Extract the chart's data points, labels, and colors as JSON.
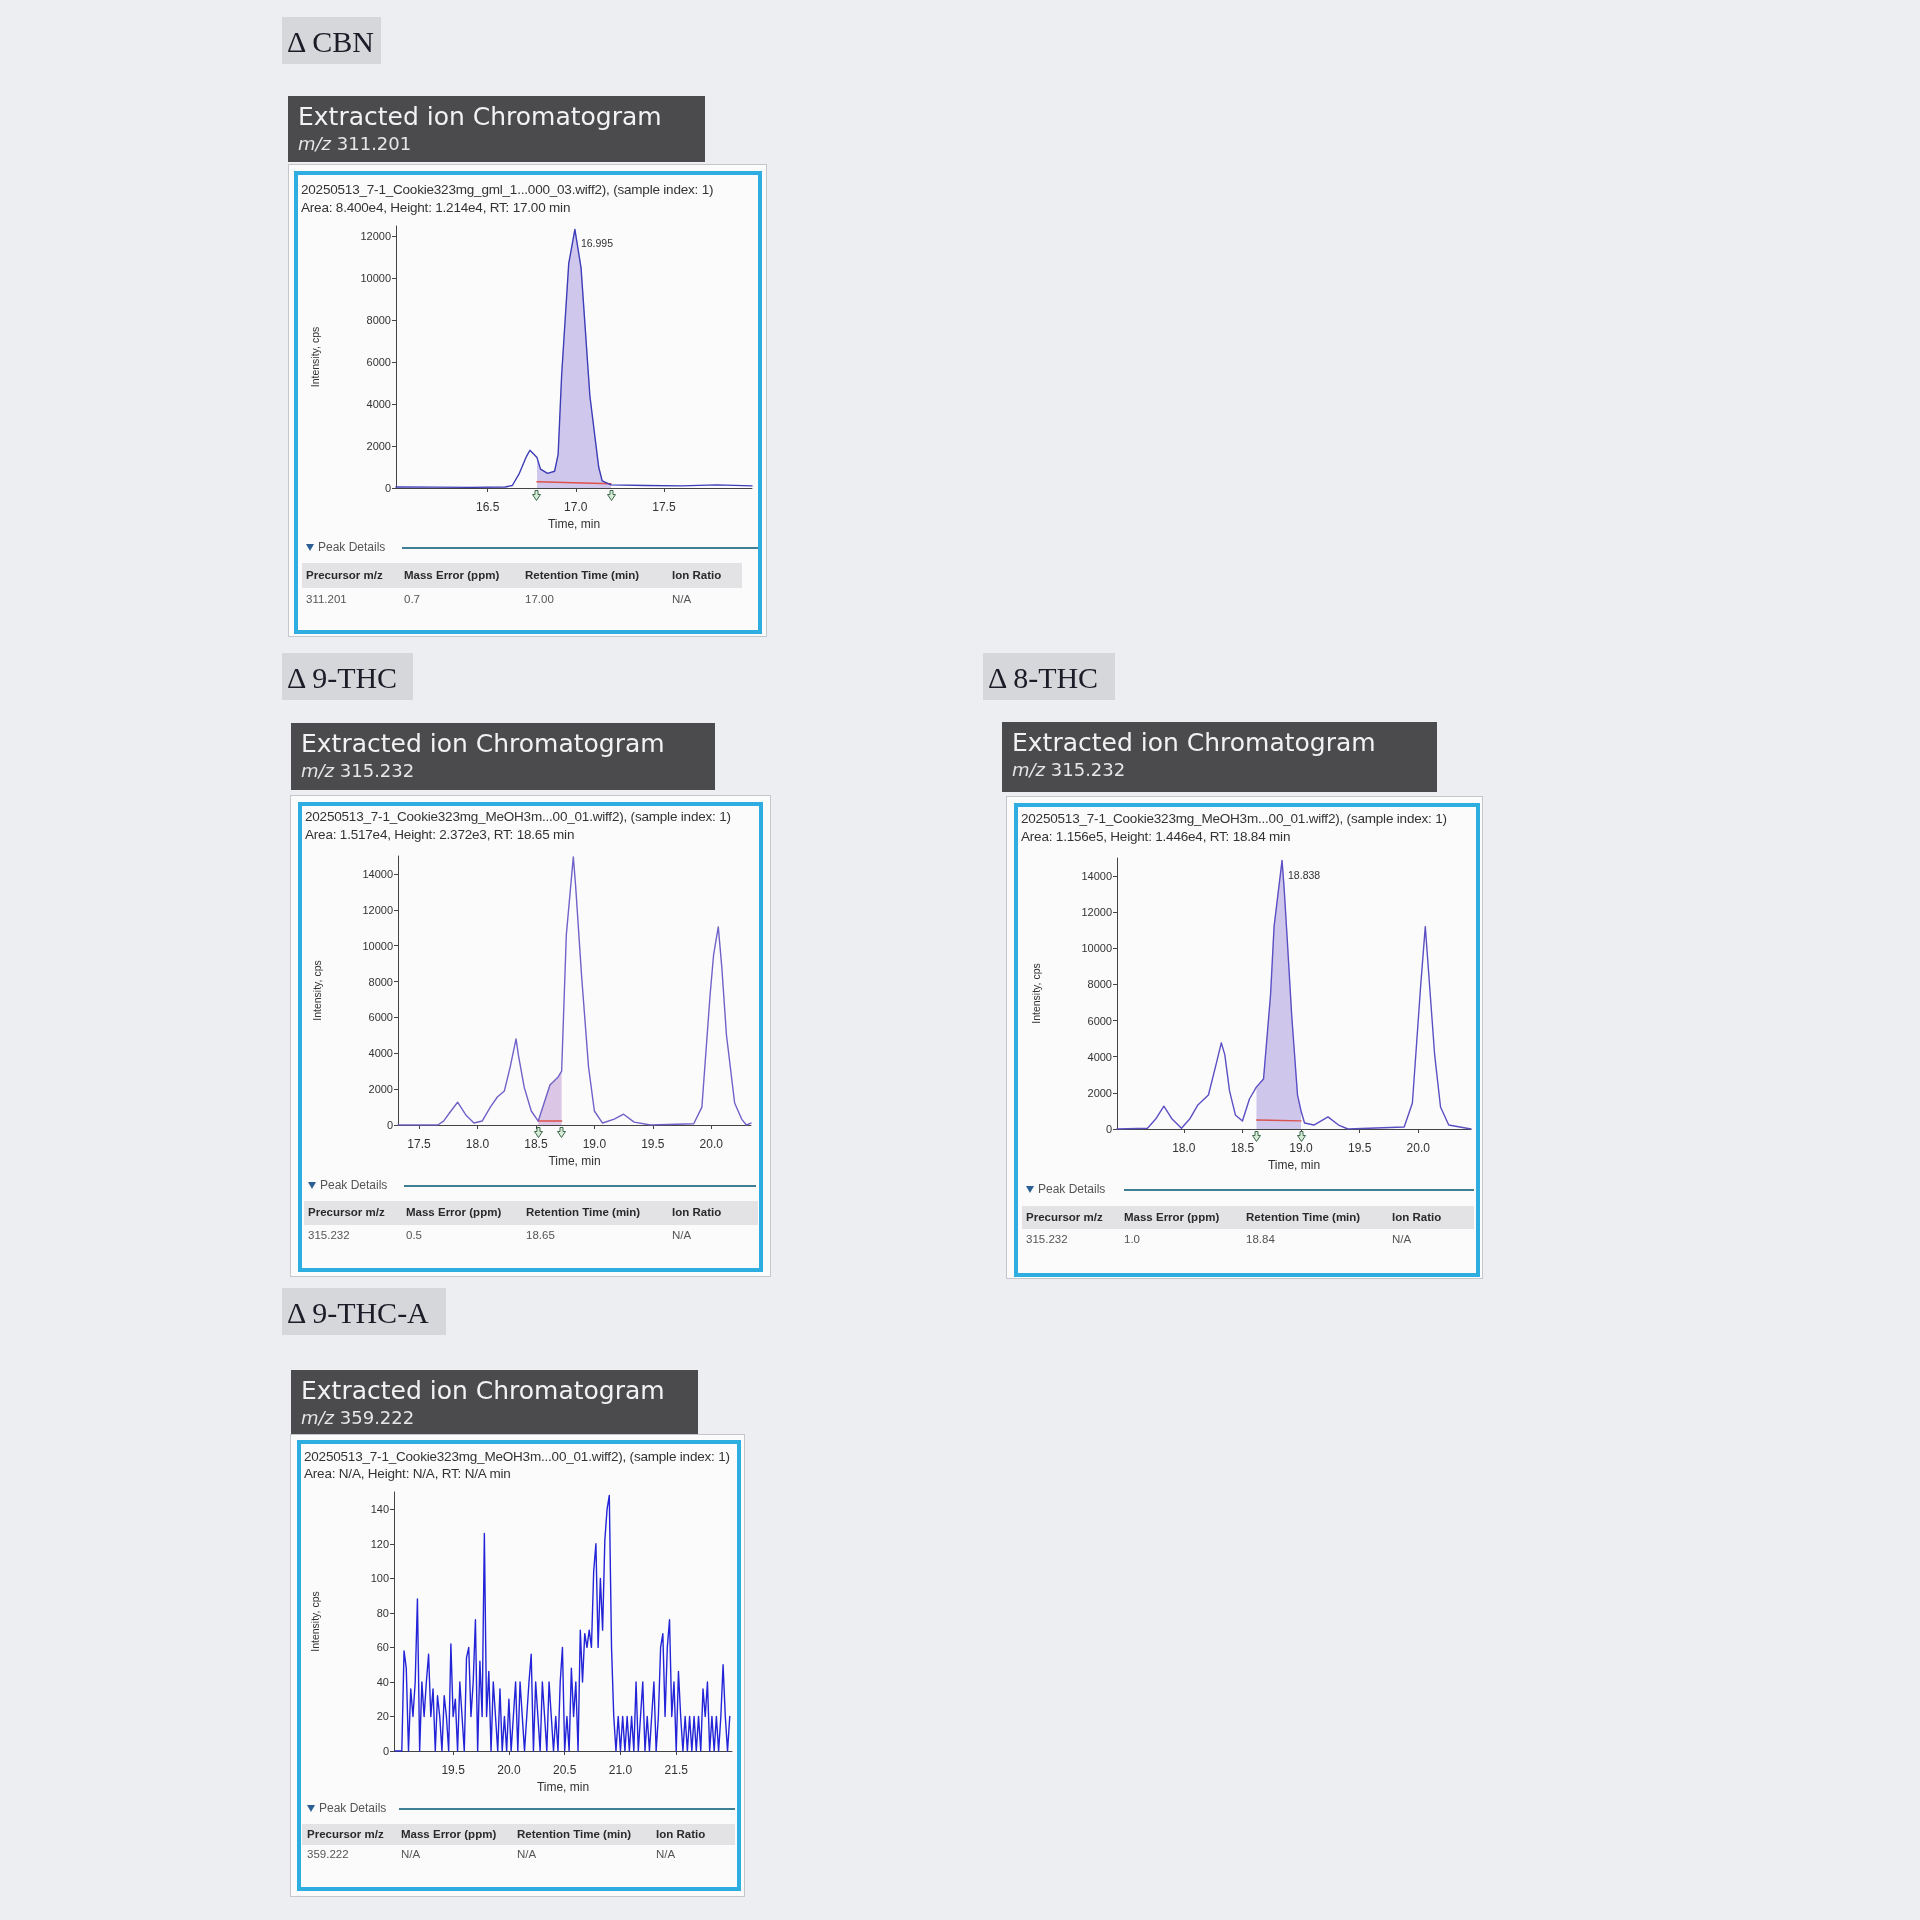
{
  "chart_data": [
    {
      "type": "line",
      "title": "Δ CBN",
      "subtitle": "Extracted ion Chromatogram",
      "xlabel": "Time, min",
      "ylabel": "Intensity, cps",
      "xlim": [
        15.98,
        18.0
      ],
      "xticks": [
        16.5,
        {
          "value": 17,
          "label": "17.0"
        },
        17.5
      ],
      "ylim": [
        0,
        12500
      ],
      "yticks": [
        0,
        2000,
        4000,
        6000,
        8000,
        10000,
        12000
      ],
      "grid": false,
      "marker": "none",
      "series": [
        {
          "type": "area",
          "color": "#cfc8ec",
          "x": [
            16.78,
            16.8,
            16.84,
            16.88,
            16.9,
            16.92,
            16.96,
            16.995,
            17.03,
            17.08,
            17.13,
            17.15,
            17.2
          ],
          "values": [
            1450,
            900,
            700,
            800,
            1600,
            5400,
            10700,
            12340,
            10500,
            4400,
            1000,
            340,
            150
          ]
        },
        {
          "type": "line",
          "color": "#e0504a",
          "x": [
            16.78,
            17.2
          ],
          "values": [
            300,
            200
          ]
        },
        {
          "type": "line",
          "color": "#3d3db8",
          "x": [
            15.98,
            16.2,
            16.4,
            16.6,
            16.64,
            16.68,
            16.72,
            16.74,
            16.78,
            16.8,
            16.84,
            16.88,
            16.9,
            16.92,
            16.96,
            16.995,
            17.03,
            17.08,
            17.13,
            17.15,
            17.2,
            17.4,
            17.6,
            17.8,
            18.0
          ],
          "values": [
            50,
            40,
            30,
            50,
            120,
            700,
            1500,
            1800,
            1450,
            900,
            700,
            800,
            1600,
            5400,
            10700,
            12340,
            10500,
            4400,
            1000,
            340,
            150,
            120,
            100,
            150,
            100
          ]
        }
      ],
      "annotations": [
        "m/z 311.201",
        "20250513_7-1_Cookie323mg_gml_1...000_03.wiff2), (sample index: 1)",
        "Area: 8.400e4, Height: 1.214e4, RT: 17.00 min",
        "Peak Details",
        "Precursor m/z",
        "Mass Error (ppm)",
        "Retention Time (min)",
        "Ion Ratio",
        "311.201",
        "0.7",
        "17.00",
        "N/A",
        {
          "text": "16.995",
          "x": 16.995,
          "y": 12340
        }
      ]
    },
    {
      "type": "line",
      "title": "Δ 9-THC",
      "subtitle": "Extracted ion Chromatogram",
      "xlabel": "Time, min",
      "ylabel": "Intensity, cps",
      "xlim": [
        17.32,
        20.34
      ],
      "xticks": [
        17.5,
        {
          "value": 18,
          "label": "18.0"
        },
        18.5,
        {
          "value": 19,
          "label": "19.0"
        },
        19.5,
        {
          "value": 20,
          "label": "20.0"
        }
      ],
      "ylim": [
        0,
        15000
      ],
      "yticks": [
        0,
        2000,
        4000,
        6000,
        8000,
        10000,
        12000,
        14000
      ],
      "grid": false,
      "marker": "none",
      "series": [
        {
          "type": "area",
          "color": "#dcc6e6",
          "x": [
            18.52,
            18.57,
            18.62,
            18.69,
            18.72
          ],
          "values": [
            220,
            1230,
            2230,
            2680,
            3000
          ]
        },
        {
          "type": "line",
          "color": "#e0504a",
          "x": [
            18.52,
            18.72
          ],
          "values": [
            220,
            220
          ]
        },
        {
          "type": "line",
          "color": "#6f62c8",
          "x": [
            17.32,
            17.66,
            17.71,
            17.76,
            17.83,
            17.9,
            17.97,
            18.04,
            18.11,
            18.17,
            18.23,
            18.28,
            18.33,
            18.35,
            18.4,
            18.46,
            18.52,
            18.57,
            18.62,
            18.69,
            18.72,
            18.76,
            18.82,
            18.84,
            18.89,
            18.95,
            19.0,
            19.07,
            19.17,
            19.25,
            19.34,
            19.48,
            19.85,
            19.92,
            19.99,
            20.02,
            20.06,
            20.09,
            20.13,
            20.2,
            20.26,
            20.3,
            20.34
          ],
          "values": [
            0,
            0,
            220,
            670,
            1270,
            560,
            110,
            220,
            1000,
            1560,
            1900,
            3240,
            4800,
            3900,
            2100,
            780,
            220,
            1230,
            2230,
            2680,
            3000,
            10600,
            14950,
            13300,
            8370,
            3240,
            780,
            110,
            330,
            600,
            160,
            0,
            70,
            1000,
            7250,
            9490,
            11050,
            8820,
            5020,
            1230,
            330,
            0,
            110
          ]
        }
      ],
      "annotations": [
        "m/z 315.232",
        "20250513_7-1_Cookie323mg_MeOH3m...00_01.wiff2), (sample index: 1)",
        "Area: 1.517e4, Height: 2.372e3, RT: 18.65 min",
        "Peak Details",
        "Precursor m/z",
        "Mass Error (ppm)",
        "Retention Time (min)",
        "Ion Ratio",
        "315.232",
        "0.5",
        "18.65",
        "N/A"
      ]
    },
    {
      "type": "line",
      "title": "Δ 8-THC",
      "subtitle": "Extracted ion Chromatogram",
      "xlabel": "Time, min",
      "ylabel": "Intensity, cps",
      "xlim": [
        17.43,
        20.45
      ],
      "xticks": [
        {
          "value": 18,
          "label": "18.0"
        },
        18.5,
        {
          "value": 19,
          "label": "19.0"
        },
        19.5,
        {
          "value": 20,
          "label": "20.0"
        }
      ],
      "ylim": [
        0,
        15000
      ],
      "yticks": [
        0,
        2000,
        4000,
        6000,
        8000,
        10000,
        12000,
        14000
      ],
      "grid": false,
      "marker": "none",
      "series": [
        {
          "type": "area",
          "color": "#cfc6ec",
          "x": [
            18.62,
            18.68,
            18.74,
            18.77,
            18.838,
            18.855,
            18.88,
            18.92,
            18.97,
            19.0
          ],
          "values": [
            2330,
            2770,
            7430,
            11200,
            14860,
            13410,
            10750,
            6320,
            1880,
            1000
          ]
        },
        {
          "type": "line",
          "color": "#d9534f",
          "x": [
            18.62,
            19.0
          ],
          "values": [
            500,
            450
          ]
        },
        {
          "type": "line",
          "color": "#5b4fc4",
          "x": [
            17.43,
            17.69,
            17.76,
            17.83,
            17.9,
            17.98,
            18.05,
            18.12,
            18.21,
            18.27,
            18.32,
            18.35,
            18.39,
            18.44,
            18.5,
            18.56,
            18.62,
            18.68,
            18.74,
            18.77,
            18.838,
            18.855,
            18.88,
            18.92,
            18.97,
            19.0,
            19.03,
            19.11,
            19.23,
            19.32,
            19.4,
            19.88,
            19.95,
            20.02,
            20.06,
            20.09,
            20.14,
            20.19,
            20.26,
            20.45
          ],
          "values": [
            0,
            40,
            550,
            1260,
            550,
            40,
            550,
            1330,
            1880,
            3440,
            4770,
            4100,
            2110,
            780,
            440,
            1660,
            2330,
            2770,
            7430,
            11200,
            14860,
            13410,
            10750,
            6320,
            1880,
            1000,
            330,
            220,
            670,
            220,
            0,
            110,
            1440,
            7870,
            11200,
            8540,
            4100,
            1220,
            220,
            0
          ]
        }
      ],
      "annotations": [
        "m/z 315.232",
        "20250513_7-1_Cookie323mg_MeOH3m...00_01.wiff2), (sample index: 1)",
        "Area: 1.156e5, Height: 1.446e4, RT: 18.84 min",
        "Peak Details",
        "Precursor m/z",
        "Mass Error (ppm)",
        "Retention Time (min)",
        "Ion Ratio",
        "315.232",
        "1.0",
        "18.84",
        "N/A",
        {
          "text": "18.838",
          "x": 18.838,
          "y": 14860
        }
      ]
    },
    {
      "type": "line",
      "title": "Δ 9-THC-A",
      "subtitle": "Extracted ion Chromatogram",
      "xlabel": "Time, min",
      "ylabel": "Intensity, cps",
      "xlim": [
        18.97,
        22.0
      ],
      "xticks": [
        19.5,
        {
          "value": 20,
          "label": "20.0"
        },
        20.5,
        {
          "value": 21,
          "label": "21.0"
        },
        21.5
      ],
      "ylim": [
        0,
        150
      ],
      "yticks": [
        0,
        20,
        40,
        60,
        80,
        100,
        120,
        140
      ],
      "grid": false,
      "marker": "none",
      "series": [
        {
          "type": "line",
          "color": "#2323d8",
          "x": [
            18.98,
            19.04,
            19.06,
            19.08,
            19.1,
            19.12,
            19.14,
            19.16,
            19.18,
            19.2,
            19.22,
            19.24,
            19.26,
            19.28,
            19.3,
            19.32,
            19.34,
            19.36,
            19.38,
            19.4,
            19.42,
            19.44,
            19.46,
            19.48,
            19.5,
            19.52,
            19.54,
            19.56,
            19.58,
            19.6,
            19.62,
            19.64,
            19.66,
            19.68,
            19.7,
            19.72,
            19.74,
            19.76,
            19.78,
            19.8,
            19.82,
            19.84,
            19.86,
            19.88,
            19.9,
            19.92,
            19.94,
            19.96,
            19.98,
            20.0,
            20.02,
            20.04,
            20.06,
            20.08,
            20.1,
            20.12,
            20.14,
            20.16,
            20.18,
            20.2,
            20.22,
            20.24,
            20.26,
            20.28,
            20.3,
            20.32,
            20.34,
            20.36,
            20.38,
            20.4,
            20.42,
            20.44,
            20.46,
            20.48,
            20.5,
            20.52,
            20.54,
            20.56,
            20.58,
            20.6,
            20.62,
            20.64,
            20.66,
            20.68,
            20.7,
            20.72,
            20.74,
            20.76,
            20.78,
            20.8,
            20.82,
            20.84,
            20.86,
            20.88,
            20.9,
            20.92,
            20.94,
            20.96,
            20.98,
            21.0,
            21.02,
            21.04,
            21.06,
            21.08,
            21.1,
            21.12,
            21.14,
            21.16,
            21.18,
            21.2,
            21.22,
            21.24,
            21.26,
            21.28,
            21.3,
            21.32,
            21.34,
            21.36,
            21.38,
            21.4,
            21.42,
            21.44,
            21.46,
            21.48,
            21.5,
            21.52,
            21.54,
            21.56,
            21.58,
            21.6,
            21.62,
            21.64,
            21.66,
            21.68,
            21.7,
            21.72,
            21.74,
            21.76,
            21.78,
            21.8,
            21.82,
            21.84,
            21.86,
            21.88,
            21.9,
            21.92,
            21.94,
            21.96,
            21.98
          ],
          "values": [
            0,
            0,
            58,
            48,
            0,
            36,
            20,
            40,
            88,
            0,
            40,
            20,
            40,
            56,
            20,
            36,
            0,
            32,
            20,
            0,
            32,
            20,
            0,
            62,
            20,
            30,
            0,
            40,
            20,
            0,
            54,
            60,
            20,
            40,
            76,
            0,
            52,
            20,
            126,
            20,
            46,
            0,
            40,
            20,
            0,
            36,
            0,
            20,
            0,
            30,
            0,
            20,
            40,
            0,
            40,
            20,
            0,
            20,
            40,
            56,
            0,
            40,
            20,
            0,
            40,
            20,
            0,
            40,
            20,
            0,
            20,
            0,
            40,
            60,
            0,
            20,
            0,
            48,
            20,
            40,
            0,
            70,
            40,
            68,
            60,
            70,
            60,
            104,
            120,
            60,
            100,
            70,
            122,
            140,
            148,
            60,
            20,
            0,
            20,
            0,
            20,
            0,
            20,
            0,
            20,
            0,
            40,
            0,
            20,
            40,
            0,
            20,
            0,
            20,
            40,
            0,
            20,
            60,
            68,
            20,
            60,
            76,
            20,
            40,
            0,
            46,
            20,
            0,
            20,
            0,
            20,
            0,
            20,
            0,
            20,
            0,
            36,
            20,
            40,
            0,
            20,
            0,
            20,
            0,
            20,
            50,
            20,
            0,
            20
          ]
        }
      ],
      "annotations": [
        "m/z 359.222",
        "20250513_7-1_Cookie323mg_MeOH3m...00_01.wiff2), (sample index: 1)",
        "Area: N/A, Height: N/A, RT: N/A min",
        "Peak Details",
        "Precursor m/z",
        "Mass Error (ppm)",
        "Retention Time (min)",
        "Ion Ratio",
        "359.222",
        "N/A",
        "N/A",
        "N/A"
      ]
    }
  ]
}
